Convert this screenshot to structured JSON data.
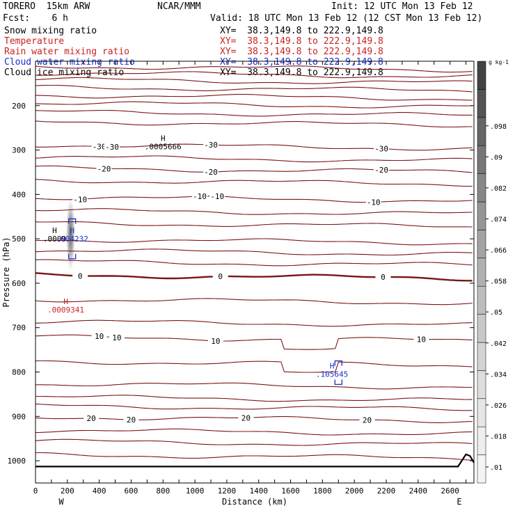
{
  "header": {
    "model": "TORERO  15km ARW",
    "org": "NCAR/MMM",
    "init": "Init: 12 UTC Mon 13 Feb 12",
    "fcst": "Fcst:    6 h",
    "valid": "Valid: 18 UTC Mon 13 Feb 12 (12 CST Mon 13 Feb 12)"
  },
  "fields": [
    {
      "name": "Snow mixing ratio",
      "xy": "XY=  38.3,149.8 to 222.9,149.8",
      "color": "#000000"
    },
    {
      "name": "Temperature",
      "xy": "XY=  38.3,149.8 to 222.9,149.8",
      "color": "#cc2222"
    },
    {
      "name": "Rain water mixing ratio",
      "xy": "XY=  38.3,149.8 to 222.9,149.8",
      "color": "#cc2222"
    },
    {
      "name": "Cloud water mixing ratio",
      "xy": "XY=  38.3,149.8 to 222.9,149.8",
      "color": "#1b2fd0"
    },
    {
      "name": "Cloud ice mixing ratio",
      "xy": "XY=  38.3,149.8 to 222.9,149.8",
      "color": "#000000"
    }
  ],
  "chart_data": {
    "type": "cross-section",
    "xlabel": "Distance (km)",
    "ylabel": "Pressure (hPa)",
    "xlim": [
      0,
      2750
    ],
    "ylim": [
      1050,
      100
    ],
    "xticks": [
      0,
      100,
      200,
      300,
      400,
      500,
      600,
      700,
      800,
      900,
      1000,
      1100,
      1200,
      1300,
      1400,
      1500,
      1600,
      1700,
      1800,
      1900,
      2000,
      2100,
      2200,
      2300,
      2400,
      2500,
      2600,
      2700
    ],
    "xtick_labels": [
      "0",
      "200",
      "400",
      "600",
      "800",
      "1000",
      "1200",
      "1400",
      "1600",
      "1800",
      "2000",
      "2200",
      "2400",
      "2600"
    ],
    "yticks": [
      200,
      300,
      400,
      500,
      600,
      700,
      800,
      900,
      1000
    ],
    "end_labels": [
      "W",
      "E"
    ],
    "temperature_contours": [
      {
        "p": 115
      },
      {
        "p": 130
      },
      {
        "p": 145
      },
      {
        "p": 162
      },
      {
        "p": 180
      },
      {
        "p": 198
      },
      {
        "p": 218
      },
      {
        "p": 240
      },
      {
        "p": 292,
        "label": "-30",
        "labels_at": [
          400,
          480,
          1100,
          2170
        ]
      },
      {
        "p": 320
      },
      {
        "p": 345,
        "label": "-20",
        "labels_at": [
          430,
          1100,
          2170
        ]
      },
      {
        "p": 372
      },
      {
        "p": 410,
        "label": "-10",
        "labels_at": [
          280,
          1030,
          1140,
          2120
        ]
      },
      {
        "p": 440
      },
      {
        "p": 468
      },
      {
        "p": 505
      },
      {
        "p": 530
      },
      {
        "p": 555
      },
      {
        "p": 585,
        "label": "0",
        "labels_at": [
          280,
          1160,
          2180
        ],
        "bold": true
      },
      {
        "p": 640
      },
      {
        "p": 690
      },
      {
        "p": 725,
        "label": "10",
        "labels_at": [
          400,
          510,
          1130,
          2420
        ]
      },
      {
        "p": 780
      },
      {
        "p": 830
      },
      {
        "p": 860
      },
      {
        "p": 880
      },
      {
        "p": 905,
        "label": "20",
        "labels_at": [
          350,
          600,
          1320,
          2080
        ]
      },
      {
        "p": 935
      },
      {
        "p": 960
      },
      {
        "p": 990
      }
    ],
    "snow_shading": {
      "x_center": 220,
      "p_center": 490,
      "x_halfwidth": 30,
      "p_halfwidth": 85
    },
    "colorbar": {
      "unit": "g kg-1",
      "ticks": [
        ".01",
        ".018",
        ".026",
        ".034",
        ".042",
        ".05",
        ".058",
        ".066",
        ".074",
        ".082",
        ".09",
        ".098"
      ]
    },
    "annotations": [
      {
        "x": 800,
        "p": 292,
        "letter": "H",
        "text": ".0005666",
        "color": "#000000"
      },
      {
        "x": 120,
        "p": 500,
        "letter": "H",
        "text": ".0009",
        "color": "#000000"
      },
      {
        "x": 230,
        "p": 500,
        "letter": "H",
        "text": ".004232",
        "color": "#1b2fd0"
      },
      {
        "x": 190,
        "p": 660,
        "letter": "H",
        "text": ".0009341",
        "color": "#cc2222"
      },
      {
        "x": 1860,
        "p": 805,
        "letter": "H",
        "text": ".105645",
        "color": "#1b2fd0"
      }
    ]
  }
}
